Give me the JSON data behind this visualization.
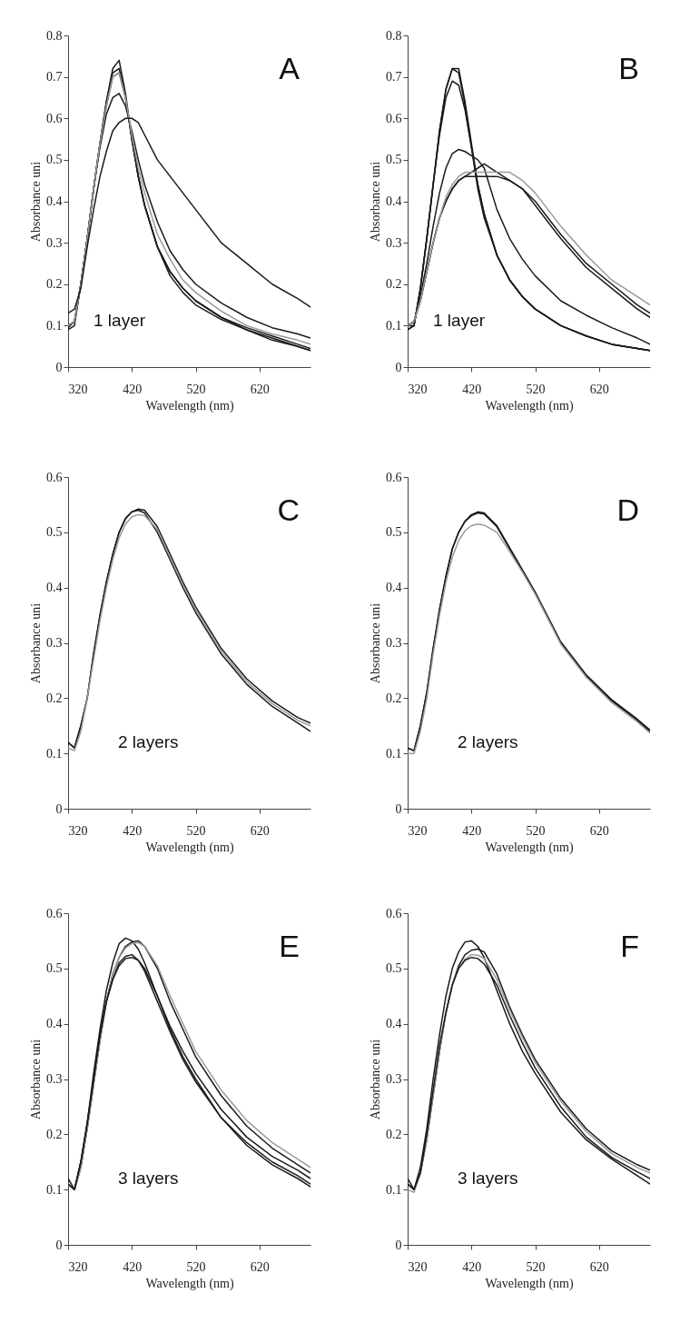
{
  "chart_data": [
    {
      "type": "line",
      "xlabel": "Wavelength (nm)",
      "ylabel": "Absorbance uni",
      "xlim": [
        320,
        700
      ],
      "xticks": [
        320,
        420,
        520,
        620
      ],
      "ylim": [
        0,
        0.8
      ],
      "yticks": [
        0,
        0.1,
        0.2,
        0.3,
        0.4,
        0.5,
        0.6,
        0.7,
        0.8
      ],
      "annotations": [
        "A",
        "1 layer"
      ],
      "x": [
        320,
        330,
        340,
        350,
        360,
        370,
        380,
        390,
        400,
        410,
        420,
        430,
        440,
        460,
        480,
        500,
        520,
        560,
        600,
        640,
        680,
        700
      ],
      "series": [
        {
          "color": "#1a1a1a",
          "values": [
            0.09,
            0.1,
            0.2,
            0.31,
            0.43,
            0.54,
            0.64,
            0.72,
            0.74,
            0.66,
            0.55,
            0.46,
            0.39,
            0.29,
            0.23,
            0.19,
            0.16,
            0.12,
            0.095,
            0.075,
            0.055,
            0.045
          ]
        },
        {
          "color": "#1a1a1a",
          "values": [
            0.1,
            0.11,
            0.2,
            0.31,
            0.43,
            0.54,
            0.64,
            0.71,
            0.72,
            0.65,
            0.55,
            0.46,
            0.39,
            0.29,
            0.23,
            0.19,
            0.16,
            0.12,
            0.09,
            0.07,
            0.05,
            0.04
          ]
        },
        {
          "color": "#1a1a1a",
          "values": [
            0.095,
            0.11,
            0.2,
            0.31,
            0.43,
            0.54,
            0.63,
            0.7,
            0.71,
            0.65,
            0.55,
            0.46,
            0.39,
            0.29,
            0.22,
            0.18,
            0.15,
            0.115,
            0.09,
            0.065,
            0.05,
            0.04
          ]
        },
        {
          "color": "#1a1a1a",
          "values": [
            0.1,
            0.11,
            0.2,
            0.31,
            0.43,
            0.53,
            0.61,
            0.65,
            0.66,
            0.63,
            0.57,
            0.5,
            0.44,
            0.35,
            0.28,
            0.235,
            0.2,
            0.155,
            0.12,
            0.095,
            0.08,
            0.07
          ]
        },
        {
          "color": "#9a9a9a",
          "values": [
            0.1,
            0.11,
            0.2,
            0.31,
            0.43,
            0.54,
            0.63,
            0.7,
            0.71,
            0.65,
            0.56,
            0.48,
            0.42,
            0.32,
            0.26,
            0.21,
            0.18,
            0.135,
            0.1,
            0.08,
            0.065,
            0.055
          ]
        },
        {
          "color": "#1a1a1a",
          "values": [
            0.13,
            0.14,
            0.19,
            0.29,
            0.38,
            0.46,
            0.52,
            0.57,
            0.59,
            0.6,
            0.6,
            0.59,
            0.56,
            0.5,
            0.46,
            0.42,
            0.38,
            0.3,
            0.25,
            0.2,
            0.165,
            0.145
          ]
        }
      ]
    },
    {
      "type": "line",
      "xlabel": "Wavelength (nm)",
      "ylabel": "Absorbance uni",
      "xlim": [
        320,
        700
      ],
      "xticks": [
        320,
        420,
        520,
        620
      ],
      "ylim": [
        0,
        0.8
      ],
      "yticks": [
        0,
        0.1,
        0.2,
        0.3,
        0.4,
        0.5,
        0.6,
        0.7,
        0.8
      ],
      "annotations": [
        "B",
        "1 layer"
      ],
      "x": [
        320,
        330,
        340,
        350,
        360,
        370,
        380,
        390,
        400,
        410,
        420,
        430,
        440,
        460,
        480,
        500,
        520,
        560,
        600,
        640,
        680,
        700
      ],
      "series": [
        {
          "color": "#1a1a1a",
          "values": [
            0.09,
            0.1,
            0.19,
            0.31,
            0.44,
            0.57,
            0.67,
            0.72,
            0.71,
            0.63,
            0.53,
            0.43,
            0.36,
            0.27,
            0.21,
            0.17,
            0.14,
            0.1,
            0.075,
            0.055,
            0.045,
            0.04
          ]
        },
        {
          "color": "#1a1a1a",
          "values": [
            0.09,
            0.1,
            0.19,
            0.31,
            0.44,
            0.57,
            0.67,
            0.72,
            0.72,
            0.64,
            0.54,
            0.44,
            0.37,
            0.27,
            0.21,
            0.17,
            0.14,
            0.1,
            0.075,
            0.055,
            0.045,
            0.04
          ]
        },
        {
          "color": "#1a1a1a",
          "values": [
            0.1,
            0.1,
            0.19,
            0.31,
            0.44,
            0.56,
            0.65,
            0.69,
            0.68,
            0.62,
            0.53,
            0.44,
            0.37,
            0.27,
            0.21,
            0.17,
            0.14,
            0.1,
            0.075,
            0.055,
            0.045,
            0.04
          ]
        },
        {
          "color": "#1a1a1a",
          "values": [
            0.1,
            0.11,
            0.17,
            0.25,
            0.34,
            0.42,
            0.48,
            0.515,
            0.525,
            0.52,
            0.51,
            0.5,
            0.48,
            0.38,
            0.31,
            0.26,
            0.22,
            0.16,
            0.125,
            0.095,
            0.07,
            0.055
          ]
        },
        {
          "color": "#1a1a1a",
          "values": [
            0.1,
            0.11,
            0.16,
            0.23,
            0.3,
            0.36,
            0.4,
            0.43,
            0.45,
            0.46,
            0.46,
            0.46,
            0.46,
            0.46,
            0.45,
            0.43,
            0.39,
            0.31,
            0.24,
            0.19,
            0.14,
            0.12
          ]
        },
        {
          "color": "#1a1a1a",
          "values": [
            0.1,
            0.11,
            0.16,
            0.23,
            0.3,
            0.36,
            0.4,
            0.43,
            0.45,
            0.46,
            0.47,
            0.48,
            0.49,
            0.47,
            0.45,
            0.43,
            0.4,
            0.32,
            0.25,
            0.2,
            0.15,
            0.13
          ]
        },
        {
          "color": "#9a9a9a",
          "values": [
            0.1,
            0.11,
            0.16,
            0.23,
            0.3,
            0.36,
            0.41,
            0.44,
            0.46,
            0.47,
            0.47,
            0.47,
            0.47,
            0.47,
            0.47,
            0.45,
            0.42,
            0.34,
            0.27,
            0.21,
            0.17,
            0.15
          ]
        }
      ]
    },
    {
      "type": "line",
      "xlabel": "Wavelength (nm)",
      "ylabel": "Absorbance uni",
      "xlim": [
        320,
        700
      ],
      "xticks": [
        320,
        420,
        520,
        620
      ],
      "ylim": [
        0,
        0.6
      ],
      "yticks": [
        0,
        0.1,
        0.2,
        0.3,
        0.4,
        0.5,
        0.6
      ],
      "annotations": [
        "C",
        "2 layers"
      ],
      "x": [
        320,
        330,
        340,
        350,
        360,
        370,
        380,
        390,
        400,
        410,
        420,
        430,
        440,
        460,
        480,
        500,
        520,
        560,
        600,
        640,
        680,
        700
      ],
      "series": [
        {
          "color": "#1a1a1a",
          "values": [
            0.12,
            0.11,
            0.15,
            0.2,
            0.28,
            0.35,
            0.41,
            0.46,
            0.5,
            0.525,
            0.537,
            0.54,
            0.535,
            0.5,
            0.45,
            0.4,
            0.355,
            0.28,
            0.225,
            0.185,
            0.155,
            0.14
          ]
        },
        {
          "color": "#1a1a1a",
          "values": [
            0.12,
            0.11,
            0.15,
            0.2,
            0.28,
            0.35,
            0.41,
            0.46,
            0.5,
            0.525,
            0.537,
            0.542,
            0.54,
            0.51,
            0.46,
            0.41,
            0.365,
            0.29,
            0.235,
            0.195,
            0.165,
            0.155
          ]
        },
        {
          "color": "#9a9a9a",
          "values": [
            0.11,
            0.105,
            0.14,
            0.2,
            0.27,
            0.34,
            0.4,
            0.45,
            0.49,
            0.515,
            0.528,
            0.532,
            0.53,
            0.505,
            0.455,
            0.405,
            0.36,
            0.285,
            0.23,
            0.19,
            0.16,
            0.15
          ]
        }
      ]
    },
    {
      "type": "line",
      "xlabel": "Wavelength (nm)",
      "ylabel": "Absorbance uni",
      "xlim": [
        320,
        700
      ],
      "xticks": [
        320,
        420,
        520,
        620
      ],
      "ylim": [
        0,
        0.6
      ],
      "yticks": [
        0,
        0.1,
        0.2,
        0.3,
        0.4,
        0.5,
        0.6
      ],
      "annotations": [
        "D",
        "2 layers"
      ],
      "x": [
        320,
        330,
        340,
        350,
        360,
        370,
        380,
        390,
        400,
        410,
        420,
        430,
        440,
        460,
        480,
        500,
        520,
        560,
        600,
        640,
        680,
        700
      ],
      "series": [
        {
          "color": "#1a1a1a",
          "values": [
            0.11,
            0.105,
            0.15,
            0.21,
            0.29,
            0.36,
            0.42,
            0.47,
            0.5,
            0.52,
            0.53,
            0.535,
            0.533,
            0.51,
            0.47,
            0.43,
            0.39,
            0.3,
            0.24,
            0.195,
            0.16,
            0.14
          ]
        },
        {
          "color": "#1a1a1a",
          "values": [
            0.11,
            0.105,
            0.15,
            0.21,
            0.29,
            0.36,
            0.42,
            0.47,
            0.5,
            0.52,
            0.532,
            0.537,
            0.535,
            0.512,
            0.472,
            0.432,
            0.392,
            0.302,
            0.242,
            0.197,
            0.162,
            0.142
          ]
        },
        {
          "color": "#9a9a9a",
          "values": [
            0.1,
            0.1,
            0.14,
            0.2,
            0.28,
            0.35,
            0.41,
            0.455,
            0.485,
            0.503,
            0.512,
            0.515,
            0.513,
            0.5,
            0.465,
            0.428,
            0.388,
            0.298,
            0.238,
            0.192,
            0.157,
            0.137
          ]
        }
      ]
    },
    {
      "type": "line",
      "xlabel": "Wavelength (nm)",
      "ylabel": "Absorbance uni",
      "xlim": [
        320,
        700
      ],
      "xticks": [
        320,
        420,
        520,
        620
      ],
      "ylim": [
        0,
        0.6
      ],
      "yticks": [
        0,
        0.1,
        0.2,
        0.3,
        0.4,
        0.5,
        0.6
      ],
      "annotations": [
        "E",
        "3 layers"
      ],
      "x": [
        320,
        330,
        340,
        350,
        360,
        370,
        380,
        390,
        400,
        410,
        420,
        430,
        440,
        460,
        480,
        500,
        520,
        560,
        600,
        640,
        680,
        700
      ],
      "series": [
        {
          "color": "#1a1a1a",
          "values": [
            0.11,
            0.1,
            0.15,
            0.22,
            0.31,
            0.39,
            0.46,
            0.51,
            0.545,
            0.555,
            0.55,
            0.535,
            0.51,
            0.45,
            0.39,
            0.34,
            0.3,
            0.23,
            0.185,
            0.15,
            0.125,
            0.11
          ]
        },
        {
          "color": "#1a1a1a",
          "values": [
            0.11,
            0.1,
            0.14,
            0.21,
            0.29,
            0.37,
            0.44,
            0.49,
            0.52,
            0.54,
            0.548,
            0.55,
            0.54,
            0.5,
            0.44,
            0.39,
            0.34,
            0.27,
            0.215,
            0.175,
            0.145,
            0.13
          ]
        },
        {
          "color": "#9a9a9a",
          "values": [
            0.11,
            0.1,
            0.14,
            0.21,
            0.29,
            0.37,
            0.44,
            0.49,
            0.52,
            0.537,
            0.545,
            0.547,
            0.54,
            0.505,
            0.45,
            0.4,
            0.35,
            0.28,
            0.225,
            0.185,
            0.155,
            0.14
          ]
        },
        {
          "color": "#1a1a1a",
          "values": [
            0.12,
            0.1,
            0.15,
            0.22,
            0.3,
            0.38,
            0.44,
            0.48,
            0.51,
            0.522,
            0.525,
            0.515,
            0.495,
            0.44,
            0.385,
            0.335,
            0.295,
            0.23,
            0.18,
            0.145,
            0.12,
            0.105
          ]
        },
        {
          "color": "#1a1a1a",
          "values": [
            0.11,
            0.1,
            0.15,
            0.22,
            0.3,
            0.38,
            0.44,
            0.48,
            0.505,
            0.518,
            0.52,
            0.515,
            0.5,
            0.45,
            0.395,
            0.35,
            0.31,
            0.245,
            0.195,
            0.16,
            0.135,
            0.12
          ]
        }
      ]
    },
    {
      "type": "line",
      "xlabel": "Wavelength (nm)",
      "ylabel": "Absorbance uni",
      "xlim": [
        320,
        700
      ],
      "xticks": [
        320,
        420,
        520,
        620
      ],
      "ylim": [
        0,
        0.6
      ],
      "yticks": [
        0,
        0.1,
        0.2,
        0.3,
        0.4,
        0.5,
        0.6
      ],
      "annotations": [
        "F",
        "3 layers"
      ],
      "x": [
        320,
        330,
        340,
        350,
        360,
        370,
        380,
        390,
        400,
        410,
        420,
        430,
        440,
        460,
        480,
        500,
        520,
        560,
        600,
        640,
        680,
        700
      ],
      "series": [
        {
          "color": "#1a1a1a",
          "values": [
            0.11,
            0.1,
            0.14,
            0.21,
            0.3,
            0.38,
            0.45,
            0.5,
            0.53,
            0.548,
            0.55,
            0.54,
            0.52,
            0.46,
            0.4,
            0.35,
            0.31,
            0.24,
            0.19,
            0.155,
            0.125,
            0.11
          ]
        },
        {
          "color": "#1a1a1a",
          "values": [
            0.11,
            0.1,
            0.13,
            0.19,
            0.27,
            0.35,
            0.42,
            0.47,
            0.505,
            0.525,
            0.533,
            0.535,
            0.53,
            0.49,
            0.43,
            0.38,
            0.335,
            0.265,
            0.21,
            0.17,
            0.145,
            0.135
          ]
        },
        {
          "color": "#9a9a9a",
          "values": [
            0.1,
            0.095,
            0.13,
            0.19,
            0.27,
            0.35,
            0.42,
            0.47,
            0.5,
            0.517,
            0.525,
            0.524,
            0.518,
            0.48,
            0.425,
            0.375,
            0.33,
            0.26,
            0.205,
            0.165,
            0.14,
            0.13
          ]
        },
        {
          "color": "#1a1a1a",
          "values": [
            0.12,
            0.1,
            0.13,
            0.2,
            0.28,
            0.36,
            0.42,
            0.47,
            0.5,
            0.515,
            0.52,
            0.518,
            0.508,
            0.47,
            0.415,
            0.365,
            0.32,
            0.25,
            0.195,
            0.158,
            0.132,
            0.12
          ]
        }
      ]
    }
  ]
}
